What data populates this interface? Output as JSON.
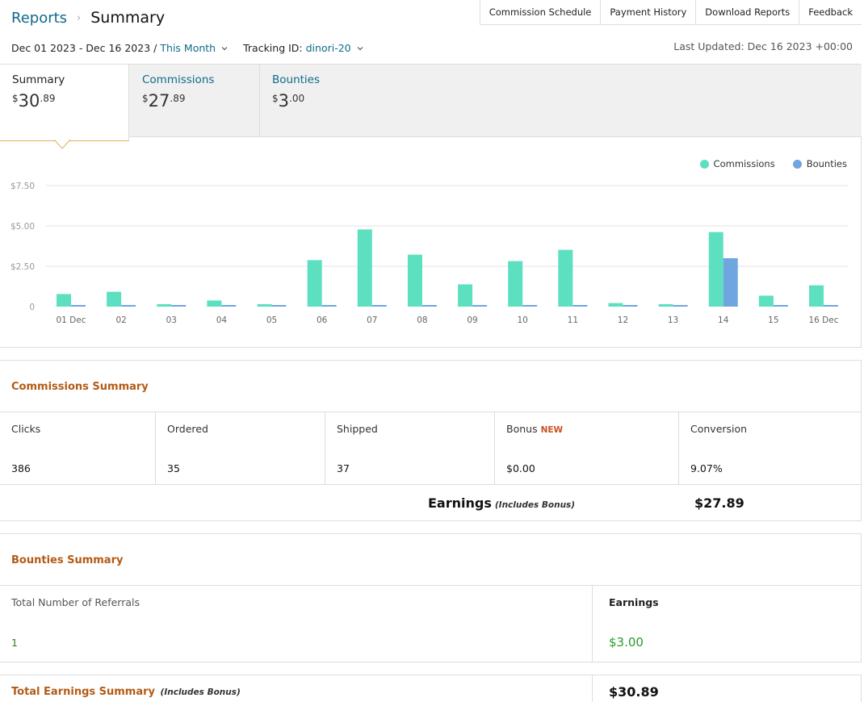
{
  "breadcrumb": {
    "parent": "Reports",
    "current": "Summary"
  },
  "top_links": [
    "Commission Schedule",
    "Payment History",
    "Download Reports",
    "Feedback"
  ],
  "filters": {
    "date_range": "Dec 01 2023 - Dec 16 2023",
    "period": "This Month",
    "tracking_label": "Tracking ID:",
    "tracking_id": "dinori-20"
  },
  "last_updated": "Last Updated: Dec 16 2023 +00:00",
  "tabs": [
    {
      "label": "Summary",
      "currency": "$",
      "whole": "30",
      "cents": ".89"
    },
    {
      "label": "Commissions",
      "currency": "$",
      "whole": "27",
      "cents": ".89"
    },
    {
      "label": "Bounties",
      "currency": "$",
      "whole": "3",
      "cents": ".00"
    }
  ],
  "colors": {
    "commissions": "#5ce0c0",
    "bounties": "#6fa6e0",
    "section_title": "#b35a14",
    "link": "#0f6a8a"
  },
  "chart_data": {
    "type": "bar",
    "categories": [
      "01 Dec",
      "02",
      "03",
      "04",
      "05",
      "06",
      "07",
      "08",
      "09",
      "10",
      "11",
      "12",
      "13",
      "14",
      "15",
      "16 Dec"
    ],
    "series": [
      {
        "name": "Commissions",
        "values": [
          0.78,
          0.92,
          0.15,
          0.38,
          0.15,
          2.88,
          4.78,
          3.22,
          1.38,
          2.82,
          3.52,
          0.22,
          0.15,
          4.62,
          0.68,
          1.32
        ]
      },
      {
        "name": "Bounties",
        "values": [
          0.1,
          0.1,
          0.1,
          0.1,
          0.1,
          0.1,
          0.1,
          0.1,
          0.1,
          0.1,
          0.1,
          0.1,
          0.1,
          3.0,
          0.1,
          0.1
        ]
      }
    ],
    "y_ticks": [
      "0",
      "$2.50",
      "$5.00",
      "$7.50"
    ],
    "ylim": [
      0,
      7.5
    ],
    "legend_position": "top-right",
    "grid": true
  },
  "commissions_summary": {
    "title": "Commissions Summary",
    "cells": [
      {
        "label": "Clicks",
        "value": "386"
      },
      {
        "label": "Ordered",
        "value": "35"
      },
      {
        "label": "Shipped",
        "value": "37"
      },
      {
        "label": "Bonus",
        "badge": "NEW",
        "value": "$0.00"
      },
      {
        "label": "Conversion",
        "value": "9.07%"
      }
    ],
    "earnings_label": "Earnings",
    "earnings_note": "(Includes Bonus)",
    "earnings_value": "$27.89"
  },
  "bounties_summary": {
    "title": "Bounties Summary",
    "referrals_label": "Total Number of Referrals",
    "referrals_value": "1",
    "earnings_label": "Earnings",
    "earnings_value": "$3.00"
  },
  "total_summary": {
    "title": "Total Earnings Summary",
    "note": "(Includes Bonus)",
    "value": "$30.89"
  }
}
